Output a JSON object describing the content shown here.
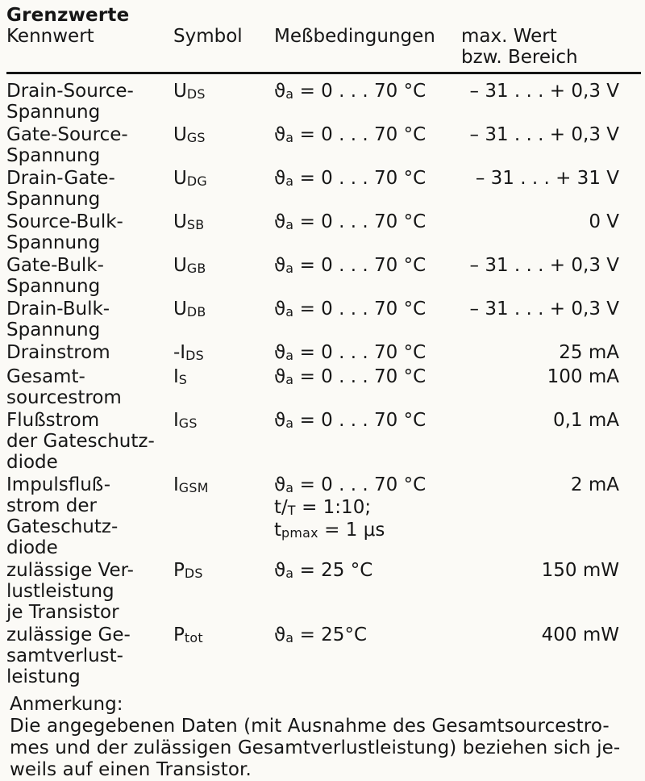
{
  "title": "Grenzwerte",
  "colors": {
    "paper": "#fbfaf6",
    "ink": "#161616",
    "rule": "#151515"
  },
  "table": {
    "columns": {
      "kennwert": "Kennwert",
      "symbol": "Symbol",
      "bedingungen": "Meßbedingungen",
      "wert": "max. Wert\nbzw. Bereich"
    },
    "rows": [
      {
        "kennwert": "Drain-Source-\nSpannung",
        "symbol": [
          {
            "t": "U"
          },
          {
            "t": "DS",
            "sub": true
          }
        ],
        "bedingungen": [
          [
            {
              "t": "ϑ"
            },
            {
              "t": "a",
              "sub": true
            },
            {
              "t": " = 0 . . . 70 °C"
            }
          ]
        ],
        "wert": "– 31 . . . + 0,3 V"
      },
      {
        "kennwert": "Gate-Source-\nSpannung",
        "symbol": [
          {
            "t": "U"
          },
          {
            "t": "GS",
            "sub": true
          }
        ],
        "bedingungen": [
          [
            {
              "t": "ϑ"
            },
            {
              "t": "a",
              "sub": true
            },
            {
              "t": " = 0 . . . 70 °C"
            }
          ]
        ],
        "wert": "– 31 . . . + 0,3 V"
      },
      {
        "kennwert": "Drain-Gate-\nSpannung",
        "symbol": [
          {
            "t": "U"
          },
          {
            "t": "DG",
            "sub": true
          }
        ],
        "bedingungen": [
          [
            {
              "t": "ϑ"
            },
            {
              "t": "a",
              "sub": true
            },
            {
              "t": " = 0 . . . 70 °C"
            }
          ]
        ],
        "wert": "– 31 . . . + 31 V"
      },
      {
        "kennwert": "Source-Bulk-\nSpannung",
        "symbol": [
          {
            "t": "U"
          },
          {
            "t": "SB",
            "sub": true
          }
        ],
        "bedingungen": [
          [
            {
              "t": "ϑ"
            },
            {
              "t": "a",
              "sub": true
            },
            {
              "t": " = 0 . . . 70 °C"
            }
          ]
        ],
        "wert": "0 V"
      },
      {
        "kennwert": "Gate-Bulk-\nSpannung",
        "symbol": [
          {
            "t": "U"
          },
          {
            "t": "GB",
            "sub": true
          }
        ],
        "bedingungen": [
          [
            {
              "t": "ϑ"
            },
            {
              "t": "a",
              "sub": true
            },
            {
              "t": " = 0 . . . 70 °C"
            }
          ]
        ],
        "wert": "– 31 . . . + 0,3 V"
      },
      {
        "kennwert": "Drain-Bulk-\nSpannung",
        "symbol": [
          {
            "t": "U"
          },
          {
            "t": "DB",
            "sub": true
          }
        ],
        "bedingungen": [
          [
            {
              "t": "ϑ"
            },
            {
              "t": "a",
              "sub": true
            },
            {
              "t": " = 0 . . . 70 °C"
            }
          ]
        ],
        "wert": "– 31 . . . + 0,3 V"
      },
      {
        "kennwert": "Drainstrom",
        "symbol": [
          {
            "t": "-I"
          },
          {
            "t": "DS",
            "sub": true
          }
        ],
        "bedingungen": [
          [
            {
              "t": "ϑ"
            },
            {
              "t": "a",
              "sub": true
            },
            {
              "t": " = 0 . . . 70 °C"
            }
          ]
        ],
        "wert": "25 mA"
      },
      {
        "kennwert": "Gesamt-\nsourcestrom",
        "symbol": [
          {
            "t": "I"
          },
          {
            "t": "S",
            "sub": true
          }
        ],
        "bedingungen": [
          [
            {
              "t": "ϑ"
            },
            {
              "t": "a",
              "sub": true
            },
            {
              "t": " = 0 . . . 70 °C"
            }
          ]
        ],
        "wert": "100 mA"
      },
      {
        "kennwert": "Flußstrom\nder Gateschutz-\ndiode",
        "symbol": [
          {
            "t": "I"
          },
          {
            "t": "GS",
            "sub": true
          }
        ],
        "bedingungen": [
          [
            {
              "t": "ϑ"
            },
            {
              "t": "a",
              "sub": true
            },
            {
              "t": " = 0 . . . 70 °C"
            }
          ]
        ],
        "wert": "0,1 mA"
      },
      {
        "kennwert": "Impulsfluß-\nstrom der\nGateschutz-\ndiode",
        "symbol": [
          {
            "t": "I"
          },
          {
            "t": "GSM",
            "sub": true
          }
        ],
        "bedingungen": [
          [
            {
              "t": "ϑ"
            },
            {
              "t": "a",
              "sub": true
            },
            {
              "t": " = 0 . . . 70 °C"
            }
          ],
          [
            {
              "t": "t/"
            },
            {
              "t": "T",
              "sub": true
            },
            {
              "t": " = 1:10;"
            }
          ],
          [
            {
              "t": "t"
            },
            {
              "t": "pmax",
              "sub": true
            },
            {
              "t": " = 1 μs"
            }
          ]
        ],
        "wert": "2 mA"
      },
      {
        "kennwert": "zulässige Ver-\nlustleistung\nje Transistor",
        "symbol": [
          {
            "t": "P"
          },
          {
            "t": "DS",
            "sub": true
          }
        ],
        "bedingungen": [
          [
            {
              "t": "ϑ"
            },
            {
              "t": "a",
              "sub": true
            },
            {
              "t": " = 25 °C"
            }
          ]
        ],
        "wert": "150 mW"
      },
      {
        "kennwert": "zulässige Ge-\nsamtverlust-\nleistung",
        "symbol": [
          {
            "t": "P"
          },
          {
            "t": "tot",
            "sub": true
          }
        ],
        "bedingungen": [
          [
            {
              "t": "ϑ"
            },
            {
              "t": "a",
              "sub": true
            },
            {
              "t": " = 25°C"
            }
          ]
        ],
        "wert": "400 mW"
      }
    ]
  },
  "note": {
    "heading": "Anmerkung:",
    "text": "Die angegebenen Daten (mit Ausnahme des Gesamtsourcestro-\nmes und der zulässigen Gesamtverlustleistung) beziehen sich je-\nweils auf einen Transistor."
  }
}
